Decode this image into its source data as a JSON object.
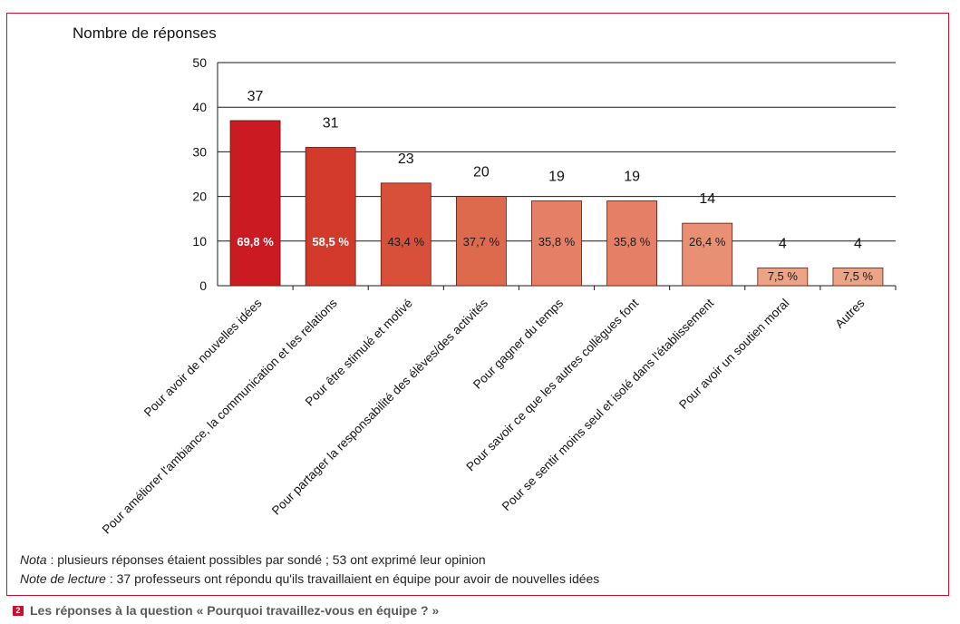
{
  "chart_data": {
    "type": "bar",
    "ylabel": "Nombre de réponses",
    "ylim": [
      0,
      50
    ],
    "yticks": [
      0,
      10,
      20,
      30,
      40,
      50
    ],
    "grid": true,
    "categories": [
      "Pour avoir de nouvelles idées",
      "Pour améliorer l'ambiance, la communication et les relations",
      "Pour être stimulé et motivé",
      "Pour partager la responsabilité des élèves/des activités",
      "Pour gagner du temps",
      "Pour savoir ce que les autres collègues font",
      "Pour se sentir moins seul et isolé dans l'établissement",
      "Pour avoir un soutien moral",
      "Autres"
    ],
    "values": [
      37,
      31,
      23,
      20,
      19,
      19,
      14,
      4,
      4
    ],
    "percent_labels": [
      "69,8 %",
      "58,5 %",
      "43,4 %",
      "37,7 %",
      "35,8 %",
      "35,8 %",
      "26,4 %",
      "7,5 %",
      "7,5 %"
    ],
    "colors": [
      "#cc1a22",
      "#d43a2c",
      "#d8503a",
      "#de6a4e",
      "#e58066",
      "#e58066",
      "#e98f74",
      "#eda385",
      "#eda385"
    ]
  },
  "notes": {
    "nota_label": "Nota",
    "nota_text": " : plusieurs réponses étaient possibles par sondé ; 53 ont exprimé leur opinion",
    "lecture_label": "Note de lecture",
    "lecture_text": " : 37 professeurs ont répondu qu'ils travaillaient en équipe pour avoir de nouvelles idées"
  },
  "caption": {
    "number": "2",
    "text": "Les réponses à la question « Pourquoi travaillez-vous en équipe ? »"
  }
}
